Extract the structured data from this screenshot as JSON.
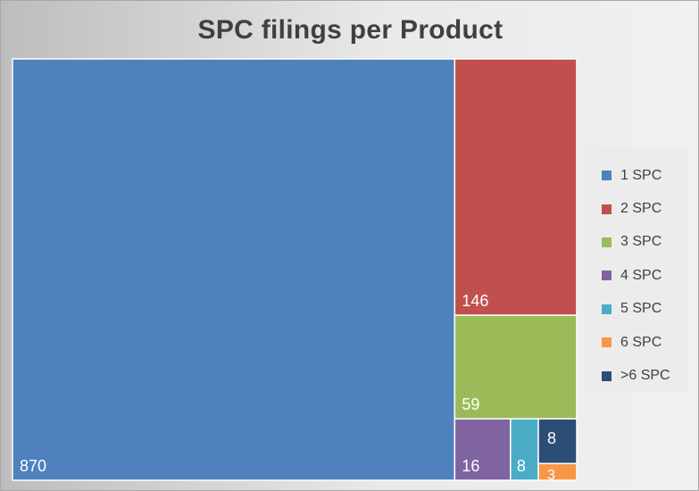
{
  "chart_data": {
    "type": "treemap",
    "title": "SPC filings per Product",
    "categories": [
      "1 SPC",
      "2 SPC",
      "3 SPC",
      "4 SPC",
      "5 SPC",
      "6 SPC",
      ">6 SPC"
    ],
    "values": [
      870,
      146,
      59,
      16,
      8,
      3,
      8
    ],
    "value_labels": [
      "870",
      "146",
      "59",
      "16",
      "8",
      "3",
      "8"
    ],
    "colors": [
      "#4f81bd",
      "#c0504d",
      "#9bbb59",
      "#8064a2",
      "#4bacc6",
      "#f79646",
      "#2c4d75"
    ],
    "legend": "right"
  }
}
